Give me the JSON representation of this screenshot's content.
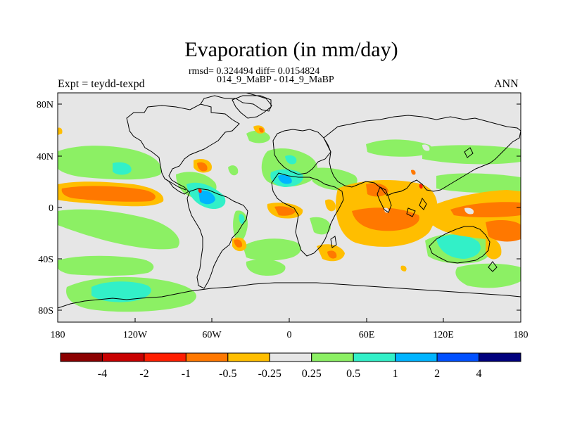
{
  "title": "Evaporation (in mm/day)",
  "stats_line": "rmsd= 0.324494 diff= 0.0154824",
  "case_line": "014_9_MaBP - 014_9_MaBP",
  "left_label": "Expt = teydd-texpd",
  "right_label": "ANN",
  "map": {
    "lat_ticks": [
      "80N",
      "40N",
      "0",
      "40S",
      "80S"
    ],
    "lon_ticks": [
      "180",
      "120W",
      "60W",
      "0",
      "60E",
      "120E",
      "180"
    ],
    "background_color": "#e6e6e6",
    "coastline_color": "#000000"
  },
  "colorbar": {
    "labels": [
      "-4",
      "-2",
      "-1",
      "-0.5",
      "-0.25",
      "0.25",
      "0.5",
      "1",
      "2",
      "4"
    ],
    "colors": [
      "#8b0000",
      "#c80000",
      "#ff1e00",
      "#ff7800",
      "#ffbe00",
      "#e6e6e6",
      "#8cf064",
      "#32f0c8",
      "#00b4ff",
      "#0050ff",
      "#00007d"
    ]
  }
}
